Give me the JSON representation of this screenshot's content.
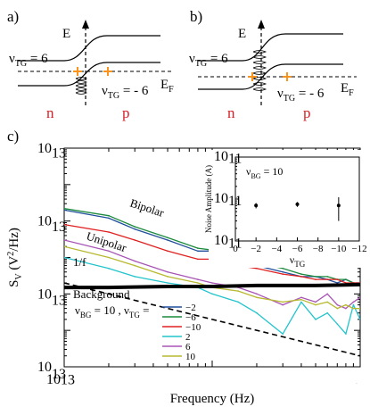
{
  "panels": {
    "a": {
      "label": "a)",
      "energy_label": "E",
      "fermi_label": "E",
      "fermi_sub": "F",
      "nu_top": "ν",
      "nu_top_sub": "TG",
      "nu_top_val": " = 6",
      "nu_bot": "ν",
      "nu_bot_sub": "TG",
      "nu_bot_val": " = - 6",
      "n_label": "n",
      "p_label": "p"
    },
    "b": {
      "label": "b)",
      "energy_label": "E",
      "fermi_label": "E",
      "fermi_sub": "F",
      "nu_top": "ν",
      "nu_top_sub": "TG",
      "nu_top_val": " = 6",
      "nu_bot": "ν",
      "nu_bot_sub": "TG",
      "nu_bot_val": " = - 6",
      "n_label": "n",
      "p_label": "p"
    },
    "c": {
      "label": "c)"
    }
  },
  "colors": {
    "n": "#d42027",
    "p": "#d42027",
    "crossing": "#f7941d",
    "minus2": "#1f4e9c",
    "minus6": "#1b8a3c",
    "minus10": "#e02020",
    "plus2": "#22c4cc",
    "plus6": "#a855b5",
    "plus10": "#b8b830",
    "background": "#000000"
  },
  "chart_data": [
    {
      "type": "line",
      "xscale": "log",
      "yscale": "log",
      "xlim": [
        0.1,
        10
      ],
      "ylim": [
        1e-18,
        1e-12
      ],
      "xlabel": "Frequency (Hz)",
      "ylabel_main": "S",
      "ylabel_sub": "V",
      "ylabel_rest": " (V",
      "ylabel_sup": "2",
      "ylabel_end": "/Hz)",
      "x_ticks": [
        "10",
        "10",
        "10"
      ],
      "x_tick_exps": [
        "-1",
        "0",
        "1"
      ],
      "y_ticks": [
        "10",
        "10",
        "10",
        "10"
      ],
      "y_tick_exps": [
        "-12",
        "-14",
        "-16",
        "-18"
      ],
      "annotations": {
        "bipolar": "Bipolar",
        "unipolar": "Unipolar",
        "one_over_f": "1/f",
        "background": "Background",
        "nu_bg": "ν",
        "nu_bg_sub": "BG",
        "nu_bg_val": " = 10 ,  ν",
        "nu_tg_sub": "TG",
        "nu_tg_val": " ="
      },
      "legend": [
        "−2",
        "−6",
        "−10",
        "2",
        "6",
        "10"
      ],
      "series": [
        {
          "name": "−2",
          "x": [
            0.1,
            0.2,
            0.3,
            0.5,
            0.8,
            1.0,
            1.5,
            2,
            3,
            4,
            5,
            6,
            7,
            8,
            9,
            10
          ],
          "y": [
            2e-14,
            1.2e-14,
            6e-15,
            3e-15,
            1.5e-15,
            1.5e-15,
            8e-16,
            6e-16,
            4e-16,
            3e-16,
            3e-16,
            2.5e-16,
            2e-16,
            2.5e-16,
            2e-16,
            2e-16
          ]
        },
        {
          "name": "−6",
          "x": [
            0.1,
            0.2,
            0.3,
            0.5,
            0.8,
            1.0,
            1.5,
            2,
            3,
            4,
            5,
            6,
            7,
            8,
            9,
            10
          ],
          "y": [
            2.2e-14,
            1.4e-14,
            7e-15,
            3.5e-15,
            1.8e-15,
            1.6e-15,
            9e-16,
            7e-16,
            5e-16,
            3.5e-16,
            3e-16,
            3e-16,
            2.5e-16,
            2.5e-16,
            2e-16,
            2e-16
          ]
        },
        {
          "name": "−10",
          "x": [
            0.1,
            0.2,
            0.3,
            0.5,
            0.8,
            1.0,
            1.5,
            2,
            3,
            4,
            5,
            6,
            7,
            8,
            9,
            10
          ],
          "y": [
            8e-15,
            5e-15,
            3e-15,
            1.5e-15,
            9e-16,
            9e-16,
            6e-16,
            5e-16,
            3.5e-16,
            3e-16,
            2.5e-16,
            2.5e-16,
            2.5e-16,
            2e-16,
            2e-16,
            2e-16
          ]
        },
        {
          "name": "2",
          "x": [
            0.1,
            0.2,
            0.3,
            0.5,
            0.8,
            1.0,
            1.5,
            2,
            3,
            4,
            5,
            6,
            7,
            8,
            9,
            10
          ],
          "y": [
            1e-15,
            5e-16,
            3e-16,
            2e-16,
            1.5e-16,
            1e-16,
            6e-17,
            3e-17,
            8e-18,
            6e-17,
            2e-17,
            3e-17,
            1.5e-17,
            8e-18,
            5e-17,
            2e-17
          ]
        },
        {
          "name": "6",
          "x": [
            0.1,
            0.2,
            0.3,
            0.5,
            0.8,
            1.0,
            1.5,
            2,
            3,
            4,
            5,
            6,
            7,
            8,
            9,
            10
          ],
          "y": [
            3e-15,
            1.5e-15,
            8e-16,
            4e-16,
            2.5e-16,
            2e-16,
            1.5e-16,
            1e-16,
            5e-17,
            8e-17,
            6e-17,
            1e-16,
            5e-17,
            4e-17,
            6e-17,
            8e-17
          ]
        },
        {
          "name": "10",
          "x": [
            0.1,
            0.2,
            0.3,
            0.5,
            0.8,
            1.0,
            1.5,
            2,
            3,
            4,
            5,
            6,
            7,
            8,
            9,
            10
          ],
          "y": [
            2e-15,
            1e-15,
            6e-16,
            3e-16,
            2e-16,
            1.5e-16,
            1.2e-16,
            8e-17,
            6e-17,
            7e-17,
            5e-17,
            6e-17,
            4e-17,
            5e-17,
            4e-17,
            4e-17
          ]
        },
        {
          "name": "Background",
          "x": [
            0.1,
            0.2,
            0.5,
            1,
            2,
            5,
            10
          ],
          "y": [
            1.5e-16,
            1.5e-16,
            1.6e-16,
            1.6e-16,
            1.7e-16,
            1.7e-16,
            1.8e-16
          ]
        },
        {
          "name": "1/f",
          "x": [
            0.1,
            10
          ],
          "y": [
            2e-16,
            2e-18
          ]
        }
      ]
    },
    {
      "type": "scatter",
      "title_nu": "ν",
      "title_sub": "BG",
      "title_val": " = 10",
      "xlabel_nu": "ν",
      "xlabel_sub": "TG",
      "ylabel": "Noise Amplitude (A)",
      "xlim": [
        0,
        -12
      ],
      "ylim": [
        1e-08,
        1e-06
      ],
      "yscale": "log",
      "x_ticks": [
        "0",
        "−2",
        "−4",
        "−6",
        "−8",
        "−10",
        "−12"
      ],
      "y_ticks": [
        "10",
        "10",
        "10"
      ],
      "y_tick_exps": [
        "-6",
        "-7",
        "-8"
      ],
      "points": [
        {
          "x": -2,
          "y": 7e-08,
          "err": 1e-08
        },
        {
          "x": -6,
          "y": 7.5e-08,
          "err": 1e-08
        },
        {
          "x": -10,
          "y": 7e-08,
          "err": 4e-08
        }
      ]
    }
  ]
}
